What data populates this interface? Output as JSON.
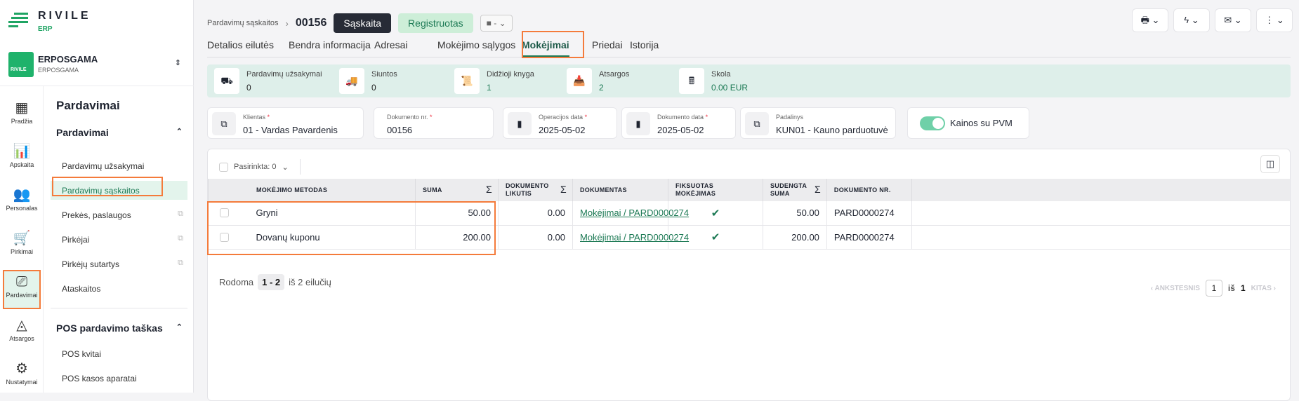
{
  "brand": {
    "name": "RIVILE",
    "sub": "ERP",
    "accent": "#1fa463",
    "highlight": "#f47b3b"
  },
  "company": {
    "name": "ERPOSGAMA",
    "sub": "ERPOSGAMA",
    "logo_text": "RIVILE"
  },
  "rail": [
    {
      "label": "Pradžia",
      "icon": "dashboard-icon"
    },
    {
      "label": "Apskaita",
      "icon": "chart-board-icon"
    },
    {
      "label": "Personalas",
      "icon": "people-icon"
    },
    {
      "label": "Pirkimai",
      "icon": "cart-icon"
    },
    {
      "label": "Pardavimai",
      "icon": "sales-icon",
      "active": true
    },
    {
      "label": "Atsargos",
      "icon": "shapes-icon"
    },
    {
      "label": "Nustatymai",
      "icon": "gear-icon"
    }
  ],
  "nav": {
    "title": "Pardavimai",
    "sections": [
      {
        "label": "Pardavimai",
        "items": [
          {
            "label": "Pardavimų užsakymai"
          },
          {
            "label": "Pardavimų sąskaitos",
            "active": true
          },
          {
            "label": "Prekės, paslaugos",
            "external": true
          },
          {
            "label": "Pirkėjai",
            "external": true
          },
          {
            "label": "Pirkėjų sutartys",
            "external": true
          },
          {
            "label": "Ataskaitos"
          }
        ]
      },
      {
        "label": "POS pardavimo taškas",
        "items": [
          {
            "label": "POS kvitai"
          },
          {
            "label": "POS kasos aparatai"
          }
        ]
      }
    ]
  },
  "header": {
    "breadcrumb": "Pardavimų sąskaitos",
    "doc_no": "00156",
    "type_badge": "Sąskaita",
    "status_badge": "Registruotas",
    "select_value": "-"
  },
  "tabs": [
    "Detalios eilutės",
    "Bendra informacija",
    "Adresai",
    "Mokėjimo sąlygos",
    "Mokėjimai",
    "Priedai",
    "Istorija"
  ],
  "active_tab": "Mokėjimai",
  "summary": [
    {
      "label": "Pardavimų užsakymai",
      "value": "0"
    },
    {
      "label": "Siuntos",
      "value": "0"
    },
    {
      "label": "Didžioji knyga",
      "value": "1"
    },
    {
      "label": "Atsargos",
      "value": "2"
    },
    {
      "label": "Skola",
      "value": "0.00 EUR"
    }
  ],
  "fields": [
    {
      "label": "Klientas",
      "value": "01 - Vardas Pavardenis",
      "required": "*"
    },
    {
      "label": "Dokumento nr.",
      "value": "00156",
      "required": "*"
    },
    {
      "label": "Operacijos data",
      "value": "2025-05-02",
      "required": "*"
    },
    {
      "label": "Dokumento data",
      "value": "2025-05-02",
      "required": "*"
    },
    {
      "label": "Padalinys",
      "value": "KUN01 - Kauno parduotuvė"
    }
  ],
  "toggle": {
    "label": "Kainos su PVM",
    "on": true
  },
  "table": {
    "selected": "Pasirinkta: 0",
    "columns": [
      "MOKĖJIMO METODAS",
      "SUMA",
      "DOKUMENTO LIKUTIS",
      "DOKUMENTAS",
      "FIKSUOTAS MOKĖJIMAS",
      "SUDENGTA SUMA",
      "DOKUMENTO NR."
    ],
    "rows": [
      {
        "method": "Gryni",
        "suma": "50.00",
        "likutis": "0.00",
        "doc": "Mokėjimai / PARD0000274",
        "fixed": true,
        "sudengta": "50.00",
        "docnr": "PARD0000274"
      },
      {
        "method": "Dovanų kuponu",
        "suma": "200.00",
        "likutis": "0.00",
        "doc": "Mokėjimai / PARD0000274",
        "fixed": true,
        "sudengta": "200.00",
        "docnr": "PARD0000274"
      }
    ]
  },
  "footer": {
    "shown_prefix": "Rodoma",
    "range": "1 - 2",
    "suffix": "iš 2 eilučių",
    "prev": "ANKSTESNIS",
    "page": "1",
    "of": "iš",
    "total": "1",
    "next": "KITAS"
  }
}
